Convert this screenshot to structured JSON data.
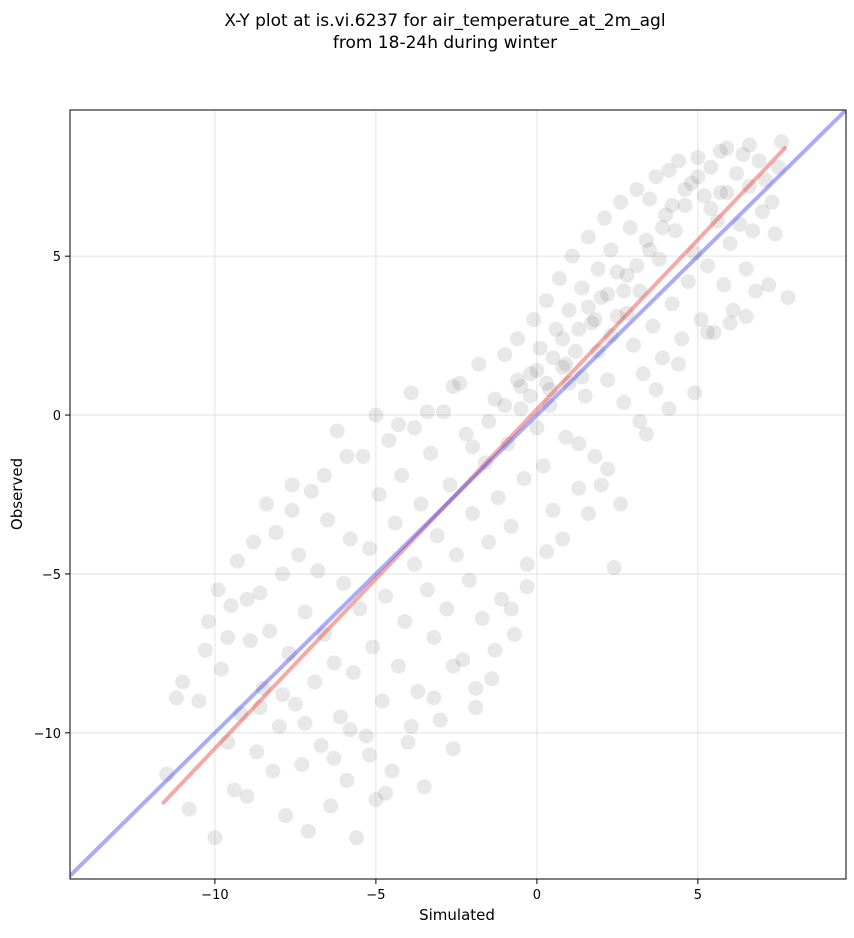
{
  "chart_data": {
    "type": "scatter",
    "title_line1": "X-Y plot at is.vi.6237 for air_temperature_at_2m_agl",
    "title_line2": "from 18-24h during winter",
    "xlabel": "Simulated",
    "ylabel": "Observed",
    "xlim": [
      -14.5,
      9.6
    ],
    "ylim": [
      -14.6,
      9.6
    ],
    "grid": true,
    "x_ticks": [
      -10,
      -5,
      0,
      5
    ],
    "x_tick_labels": [
      "−10",
      "−5",
      "0",
      "5"
    ],
    "y_ticks": [
      -10,
      -5,
      0,
      5
    ],
    "y_tick_labels": [
      "−10",
      "−5",
      "0",
      "5"
    ],
    "point_color": "#000000",
    "point_opacity": 0.09,
    "points": [
      [
        -11.5,
        -11.3
      ],
      [
        -11.2,
        -8.9
      ],
      [
        -11.0,
        -8.4
      ],
      [
        -10.8,
        -12.4
      ],
      [
        -10.5,
        -9.0
      ],
      [
        -10.3,
        -7.4
      ],
      [
        -10.2,
        -6.5
      ],
      [
        -10.0,
        -13.3
      ],
      [
        -9.9,
        -5.5
      ],
      [
        -9.8,
        -8.0
      ],
      [
        -9.6,
        -10.3
      ],
      [
        -9.5,
        -6.0
      ],
      [
        -9.4,
        -11.8
      ],
      [
        -9.3,
        -4.6
      ],
      [
        -9.2,
        -9.4
      ],
      [
        -9.0,
        -12.0
      ],
      [
        -8.9,
        -7.1
      ],
      [
        -8.8,
        -4.0
      ],
      [
        -8.7,
        -10.6
      ],
      [
        -8.6,
        -5.6
      ],
      [
        -8.5,
        -8.6
      ],
      [
        -8.3,
        -6.8
      ],
      [
        -8.2,
        -11.2
      ],
      [
        -8.1,
        -3.7
      ],
      [
        -8.0,
        -9.8
      ],
      [
        -7.9,
        -5.0
      ],
      [
        -7.8,
        -12.6
      ],
      [
        -7.7,
        -7.5
      ],
      [
        -7.6,
        -3.0
      ],
      [
        -7.5,
        -9.1
      ],
      [
        -7.4,
        -4.4
      ],
      [
        -7.3,
        -11.0
      ],
      [
        -7.2,
        -6.2
      ],
      [
        -7.1,
        -13.1
      ],
      [
        -7.0,
        -2.4
      ],
      [
        -6.9,
        -8.4
      ],
      [
        -6.8,
        -4.9
      ],
      [
        -6.7,
        -10.4
      ],
      [
        -6.6,
        -6.9
      ],
      [
        -6.5,
        -3.3
      ],
      [
        -6.4,
        -12.3
      ],
      [
        -6.3,
        -7.8
      ],
      [
        -6.2,
        -0.5
      ],
      [
        -6.1,
        -9.5
      ],
      [
        -6.0,
        -5.3
      ],
      [
        -5.9,
        -11.5
      ],
      [
        -5.8,
        -3.9
      ],
      [
        -5.7,
        -8.1
      ],
      [
        -5.6,
        -13.3
      ],
      [
        -5.5,
        -6.1
      ],
      [
        -5.4,
        -1.3
      ],
      [
        -5.3,
        -10.1
      ],
      [
        -5.2,
        -4.2
      ],
      [
        -5.1,
        -7.3
      ],
      [
        -5.0,
        -12.1
      ],
      [
        -4.9,
        -2.5
      ],
      [
        -4.8,
        -9.0
      ],
      [
        -4.7,
        -5.7
      ],
      [
        -4.6,
        -0.8
      ],
      [
        -4.5,
        -11.2
      ],
      [
        -4.4,
        -3.4
      ],
      [
        -4.3,
        -7.9
      ],
      [
        -4.2,
        -1.9
      ],
      [
        -4.1,
        -6.5
      ],
      [
        -4.0,
        -10.3
      ],
      [
        -3.9,
        0.7
      ],
      [
        -3.8,
        -4.7
      ],
      [
        -3.7,
        -8.7
      ],
      [
        -3.6,
        -2.8
      ],
      [
        -3.5,
        -11.7
      ],
      [
        -3.4,
        -5.5
      ],
      [
        -3.3,
        -1.2
      ],
      [
        -3.2,
        -7.0
      ],
      [
        -3.1,
        -3.8
      ],
      [
        -3.0,
        -9.6
      ],
      [
        -2.9,
        0.1
      ],
      [
        -2.8,
        -6.1
      ],
      [
        -2.7,
        -2.2
      ],
      [
        -2.6,
        -10.5
      ],
      [
        -2.5,
        -4.4
      ],
      [
        -2.4,
        1.0
      ],
      [
        -2.3,
        -7.7
      ],
      [
        -2.2,
        -0.6
      ],
      [
        -2.1,
        -5.2
      ],
      [
        -2.0,
        -3.1
      ],
      [
        -1.9,
        -9.2
      ],
      [
        -1.8,
        1.6
      ],
      [
        -1.7,
        -6.4
      ],
      [
        -1.6,
        -1.5
      ],
      [
        -1.5,
        -4.0
      ],
      [
        -1.4,
        -8.3
      ],
      [
        -1.3,
        0.5
      ],
      [
        -1.2,
        -2.6
      ],
      [
        -1.1,
        -5.8
      ],
      [
        -1.0,
        1.9
      ],
      [
        -0.9,
        -0.9
      ],
      [
        -0.8,
        -3.5
      ],
      [
        -0.7,
        -6.9
      ],
      [
        -0.6,
        2.4
      ],
      [
        -0.5,
        0.2
      ],
      [
        -0.4,
        -2.0
      ],
      [
        -0.3,
        -4.7
      ],
      [
        -0.2,
        1.3
      ],
      [
        -0.1,
        3.0
      ],
      [
        0.0,
        -0.4
      ],
      [
        0.1,
        2.1
      ],
      [
        0.2,
        -1.6
      ],
      [
        0.3,
        3.6
      ],
      [
        0.4,
        0.8
      ],
      [
        0.5,
        -3.0
      ],
      [
        0.6,
        2.7
      ],
      [
        0.7,
        4.3
      ],
      [
        0.8,
        1.5
      ],
      [
        0.9,
        -0.7
      ],
      [
        1.0,
        3.3
      ],
      [
        1.1,
        5.0
      ],
      [
        1.2,
        2.0
      ],
      [
        1.3,
        -2.3
      ],
      [
        1.4,
        4.0
      ],
      [
        1.5,
        0.6
      ],
      [
        1.6,
        5.6
      ],
      [
        1.7,
        2.9
      ],
      [
        1.8,
        -1.3
      ],
      [
        1.9,
        4.6
      ],
      [
        2.0,
        3.7
      ],
      [
        2.1,
        6.2
      ],
      [
        2.2,
        1.1
      ],
      [
        2.3,
        5.2
      ],
      [
        2.4,
        -4.8
      ],
      [
        2.5,
        3.1
      ],
      [
        2.6,
        6.7
      ],
      [
        2.7,
        0.4
      ],
      [
        2.8,
        4.4
      ],
      [
        2.9,
        5.9
      ],
      [
        3.0,
        2.2
      ],
      [
        3.1,
        7.1
      ],
      [
        3.2,
        3.9
      ],
      [
        3.3,
        1.3
      ],
      [
        3.4,
        5.5
      ],
      [
        3.5,
        6.8
      ],
      [
        3.6,
        2.8
      ],
      [
        3.7,
        7.5
      ],
      [
        3.8,
        4.9
      ],
      [
        3.9,
        1.8
      ],
      [
        4.0,
        6.3
      ],
      [
        4.1,
        7.7
      ],
      [
        4.2,
        3.5
      ],
      [
        4.3,
        5.8
      ],
      [
        4.4,
        8.0
      ],
      [
        4.5,
        2.4
      ],
      [
        4.6,
        6.6
      ],
      [
        4.7,
        4.2
      ],
      [
        4.8,
        7.3
      ],
      [
        4.9,
        5.1
      ],
      [
        5.0,
        8.1
      ],
      [
        5.1,
        3.0
      ],
      [
        5.2,
        6.9
      ],
      [
        5.3,
        4.7
      ],
      [
        5.4,
        7.8
      ],
      [
        5.5,
        2.6
      ],
      [
        5.6,
        6.1
      ],
      [
        5.7,
        8.3
      ],
      [
        5.8,
        4.1
      ],
      [
        5.9,
        7.0
      ],
      [
        6.0,
        5.4
      ],
      [
        6.1,
        3.3
      ],
      [
        6.2,
        7.6
      ],
      [
        6.3,
        6.0
      ],
      [
        6.4,
        8.2
      ],
      [
        6.5,
        4.6
      ],
      [
        6.6,
        7.2
      ],
      [
        6.7,
        5.8
      ],
      [
        6.8,
        3.9
      ],
      [
        6.9,
        8.0
      ],
      [
        7.0,
        6.4
      ],
      [
        7.1,
        7.4
      ],
      [
        7.2,
        4.1
      ],
      [
        7.3,
        6.7
      ],
      [
        7.4,
        5.7
      ],
      [
        7.6,
        8.6
      ],
      [
        7.8,
        3.7
      ],
      [
        7.5,
        7.8
      ],
      [
        6.6,
        8.5
      ],
      [
        5.9,
        8.4
      ],
      [
        -3.8,
        -0.4
      ],
      [
        -2.0,
        -1.0
      ],
      [
        -1.5,
        -0.2
      ],
      [
        -1.0,
        0.3
      ],
      [
        -0.5,
        0.9
      ],
      [
        0.0,
        1.4
      ],
      [
        0.3,
        1.0
      ],
      [
        0.5,
        1.8
      ],
      [
        0.8,
        2.4
      ],
      [
        1.0,
        1.0
      ],
      [
        1.3,
        2.7
      ],
      [
        1.6,
        3.4
      ],
      [
        1.9,
        2.0
      ],
      [
        2.2,
        3.8
      ],
      [
        2.5,
        4.5
      ],
      [
        2.8,
        3.2
      ],
      [
        -0.2,
        0.6
      ],
      [
        -0.6,
        1.1
      ],
      [
        0.4,
        0.3
      ],
      [
        0.9,
        1.6
      ],
      [
        1.4,
        1.2
      ],
      [
        1.8,
        3.0
      ],
      [
        2.3,
        2.5
      ],
      [
        2.7,
        3.9
      ],
      [
        3.1,
        4.7
      ],
      [
        3.5,
        5.2
      ],
      [
        3.9,
        5.9
      ],
      [
        4.2,
        6.6
      ],
      [
        4.6,
        7.1
      ],
      [
        5.0,
        7.5
      ],
      [
        5.4,
        6.5
      ],
      [
        5.7,
        7.0
      ],
      [
        -8.4,
        -2.8
      ],
      [
        -7.6,
        -2.2
      ],
      [
        -6.6,
        -1.9
      ],
      [
        -5.9,
        -1.3
      ],
      [
        -5.0,
        0.0
      ],
      [
        -4.3,
        -0.3
      ],
      [
        -3.4,
        0.1
      ],
      [
        -2.6,
        0.9
      ],
      [
        -9.6,
        -7.0
      ],
      [
        -9.0,
        -5.8
      ],
      [
        -8.6,
        -9.2
      ],
      [
        -7.9,
        -8.8
      ],
      [
        -7.2,
        -9.7
      ],
      [
        -6.3,
        -10.8
      ],
      [
        -5.8,
        -9.9
      ],
      [
        -5.2,
        -10.7
      ],
      [
        -4.7,
        -11.9
      ],
      [
        -3.9,
        -9.8
      ],
      [
        -3.2,
        -8.9
      ],
      [
        -2.6,
        -7.9
      ],
      [
        -1.9,
        -8.6
      ],
      [
        -1.3,
        -7.4
      ],
      [
        -0.8,
        -6.1
      ],
      [
        -0.3,
        -5.4
      ],
      [
        0.3,
        -4.3
      ],
      [
        0.8,
        -3.9
      ],
      [
        1.6,
        -3.1
      ],
      [
        2.0,
        -2.2
      ],
      [
        2.6,
        -2.8
      ],
      [
        3.2,
        -0.2
      ],
      [
        3.7,
        0.8
      ],
      [
        4.4,
        1.6
      ],
      [
        5.3,
        2.6
      ],
      [
        6.0,
        2.9
      ],
      [
        6.5,
        3.1
      ],
      [
        4.9,
        0.7
      ],
      [
        4.1,
        0.2
      ],
      [
        3.4,
        -0.6
      ],
      [
        2.2,
        -1.7
      ],
      [
        1.3,
        -0.9
      ]
    ],
    "series": [
      {
        "name": "",
        "color": "#e84040",
        "opacity": 0.45,
        "x": [
          -11.6,
          7.7
        ],
        "y": [
          -12.2,
          8.4
        ]
      },
      {
        "name": "",
        "color": "#4444ee",
        "opacity": 0.45,
        "x": [
          -14.5,
          9.6
        ],
        "y": [
          -14.5,
          9.6
        ]
      }
    ]
  }
}
